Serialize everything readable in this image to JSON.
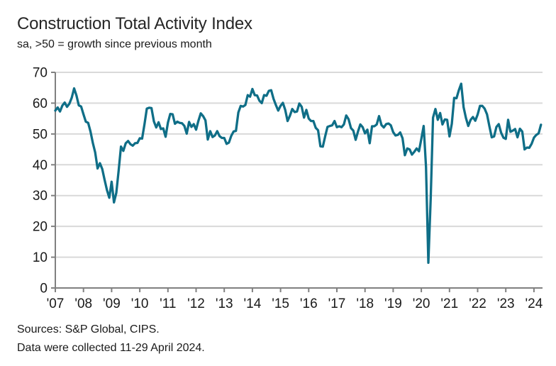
{
  "header": {
    "title": "Construction Total Activity Index",
    "subtitle": "sa, >50 = growth since previous month"
  },
  "footer": {
    "sources": "Sources: S&P Global, CIPS.",
    "collection_note": "Data were collected 11-29 April 2024."
  },
  "colors": {
    "line": "#0f6e87",
    "grid": "#d9d9d9",
    "axis": "#808080",
    "text": "#1a1a1a"
  },
  "chart_data": {
    "type": "line",
    "title": "Construction Total Activity Index",
    "subtitle": "sa, >50 = growth since previous month",
    "xlabel": "",
    "ylabel": "",
    "ylim": [
      0,
      70
    ],
    "y_ticks": [
      0,
      10,
      20,
      30,
      40,
      50,
      60,
      70
    ],
    "x_tick_labels": [
      "'07",
      "'08",
      "'09",
      "'10",
      "'11",
      "'12",
      "'13",
      "'14",
      "'15",
      "'16",
      "'17",
      "'18",
      "'19",
      "'20",
      "'21",
      "'22",
      "'23",
      "'24"
    ],
    "grid": true,
    "legend": "none",
    "frequency": "monthly",
    "x_start": "2007-01",
    "x_end": "2024-04",
    "series": [
      {
        "name": "Construction Total Activity Index",
        "values": [
          57.6,
          58.6,
          57.3,
          59.2,
          60.2,
          58.8,
          59.8,
          61.8,
          64.8,
          62.5,
          59.3,
          58.9,
          56.4,
          54.0,
          53.6,
          50.8,
          47.1,
          44.0,
          38.8,
          40.5,
          38.6,
          35.1,
          31.8,
          29.3,
          34.5,
          27.8,
          30.9,
          38.1,
          45.9,
          44.5,
          47.0,
          47.7,
          46.7,
          46.2,
          47.0,
          47.1,
          48.6,
          48.5,
          53.1,
          58.2,
          58.5,
          58.4,
          54.1,
          52.1,
          53.8,
          51.6,
          51.8,
          49.1,
          53.7,
          56.5,
          56.4,
          53.3,
          54.0,
          53.6,
          53.5,
          52.6,
          50.1,
          53.9,
          52.3,
          53.2,
          51.4,
          54.3,
          56.7,
          55.8,
          54.4,
          48.2,
          50.9,
          49.0,
          49.5,
          50.9,
          49.3,
          48.7,
          48.7,
          46.8,
          47.2,
          49.4,
          50.8,
          51.0,
          57.0,
          59.1,
          58.9,
          59.4,
          62.6,
          62.1,
          64.6,
          62.6,
          62.5,
          60.8,
          60.0,
          62.6,
          62.4,
          64.0,
          64.2,
          61.4,
          59.4,
          57.6,
          59.1,
          60.1,
          57.8,
          54.2,
          55.9,
          58.1,
          57.1,
          57.3,
          59.9,
          58.8,
          55.3,
          57.8,
          55.0,
          54.2,
          54.2,
          52.0,
          51.2,
          46.0,
          45.9,
          49.2,
          52.3,
          52.6,
          52.8,
          54.2,
          52.2,
          52.5,
          52.2,
          53.1,
          56.0,
          54.8,
          51.9,
          51.1,
          48.1,
          50.8,
          53.1,
          52.2,
          50.2,
          51.4,
          47.0,
          52.5,
          52.5,
          53.1,
          55.8,
          52.9,
          52.1,
          53.2,
          53.4,
          52.8,
          50.6,
          49.5,
          49.7,
          50.5,
          48.6,
          43.1,
          45.3,
          45.0,
          43.3,
          44.2,
          45.3,
          44.4,
          48.4,
          52.6,
          39.3,
          8.2,
          28.9,
          55.3,
          58.1,
          54.6,
          56.8,
          53.1,
          54.7,
          54.6,
          49.2,
          53.3,
          61.7,
          61.6,
          64.2,
          66.3,
          58.7,
          55.2,
          52.6,
          54.6,
          55.5,
          54.3,
          56.3,
          59.1,
          59.1,
          58.2,
          56.4,
          52.6,
          48.9,
          49.2,
          52.3,
          53.2,
          50.4,
          48.8,
          48.4,
          54.6,
          50.7,
          51.1,
          51.6,
          48.9,
          51.7,
          50.8,
          45.0,
          45.6,
          45.5,
          46.8,
          48.8,
          49.7,
          50.2,
          53.0
        ]
      }
    ]
  }
}
